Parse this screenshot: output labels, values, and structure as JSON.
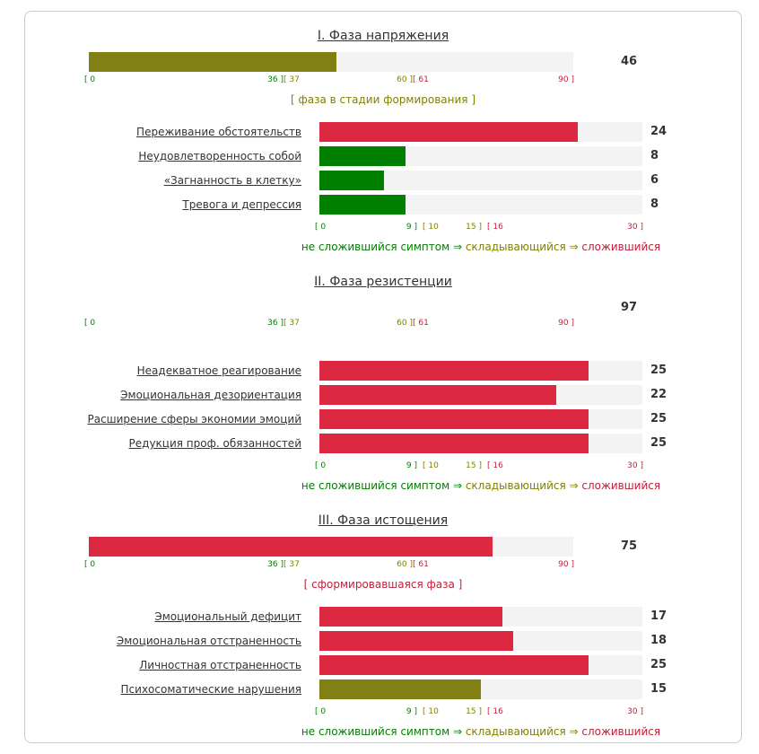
{
  "phase_scale": {
    "range": [
      0,
      90
    ],
    "ticks": [
      {
        "value": 0,
        "label": "[ 0",
        "color": "#008000"
      },
      {
        "value": 36,
        "label": "36 ]",
        "color": "#008000"
      },
      {
        "value": 37,
        "label": "[ 37",
        "color": "#808000"
      },
      {
        "value": 60,
        "label": "60 ]",
        "color": "#808000"
      },
      {
        "value": 61,
        "label": "[ 61",
        "color": "#c0203a"
      },
      {
        "value": 90,
        "label": "90 ]",
        "color": "#c0203a"
      }
    ]
  },
  "symptom_scale": {
    "range": [
      0,
      30
    ],
    "ticks": [
      {
        "value": 0,
        "label": "[ 0",
        "color": "#008000"
      },
      {
        "value": 9,
        "label": "9 ]",
        "color": "#008000"
      },
      {
        "value": 10,
        "label": "[ 10",
        "color": "#808000"
      },
      {
        "value": 15,
        "label": "15 ]",
        "color": "#808000"
      },
      {
        "value": 16,
        "label": "[ 16",
        "color": "#c0203a"
      },
      {
        "value": 30,
        "label": "30 ]",
        "color": "#c0203a"
      }
    ]
  },
  "legend": [
    {
      "text": "не сложившийся симптом",
      "color": "#008000"
    },
    {
      "text": " ⇒ ",
      "color": "#008000"
    },
    {
      "text": "складывающийся",
      "color": "#808000"
    },
    {
      "text": " ⇒ ",
      "color": "#808000"
    },
    {
      "text": "сложившийся",
      "color": "#c0203a"
    }
  ],
  "phases": [
    {
      "title": "I. Фаза напряжения",
      "value": 46,
      "bar": true,
      "color": "#808015",
      "status": "[ фаза в стадии формирования ]",
      "status_color": "#808000",
      "symptoms": [
        {
          "name": "Переживание обстоятельств",
          "value": 24,
          "color": "#dc2841"
        },
        {
          "name": "Неудовлетворенность собой",
          "value": 8,
          "color": "#008000"
        },
        {
          "name": "«Загнанность в клетку»",
          "value": 6,
          "color": "#008000"
        },
        {
          "name": "Тревога и депрессия",
          "value": 8,
          "color": "#008000"
        }
      ]
    },
    {
      "title": "II. Фаза резистенции",
      "value": 97,
      "bar": false,
      "symptoms": [
        {
          "name": "Неадекватное реагирование",
          "value": 25,
          "color": "#dc2841"
        },
        {
          "name": "Эмоциональная дезориентация",
          "value": 22,
          "color": "#dc2841"
        },
        {
          "name": "Расширение сферы экономии эмоций",
          "value": 25,
          "color": "#dc2841"
        },
        {
          "name": "Редукция проф. обязанностей",
          "value": 25,
          "color": "#dc2841"
        }
      ]
    },
    {
      "title": "III. Фаза истощения",
      "value": 75,
      "bar": true,
      "color": "#dc2841",
      "status": "[ сформировавшаяся фаза ]",
      "status_color": "#c0203a",
      "symptoms": [
        {
          "name": "Эмоциональный дефицит",
          "value": 17,
          "color": "#dc2841"
        },
        {
          "name": "Эмоциональная отстраненность",
          "value": 18,
          "color": "#dc2841"
        },
        {
          "name": "Личностная отстраненность",
          "value": 25,
          "color": "#dc2841"
        },
        {
          "name": "Психосоматические нарушения",
          "value": 15,
          "color": "#808015"
        }
      ]
    }
  ]
}
